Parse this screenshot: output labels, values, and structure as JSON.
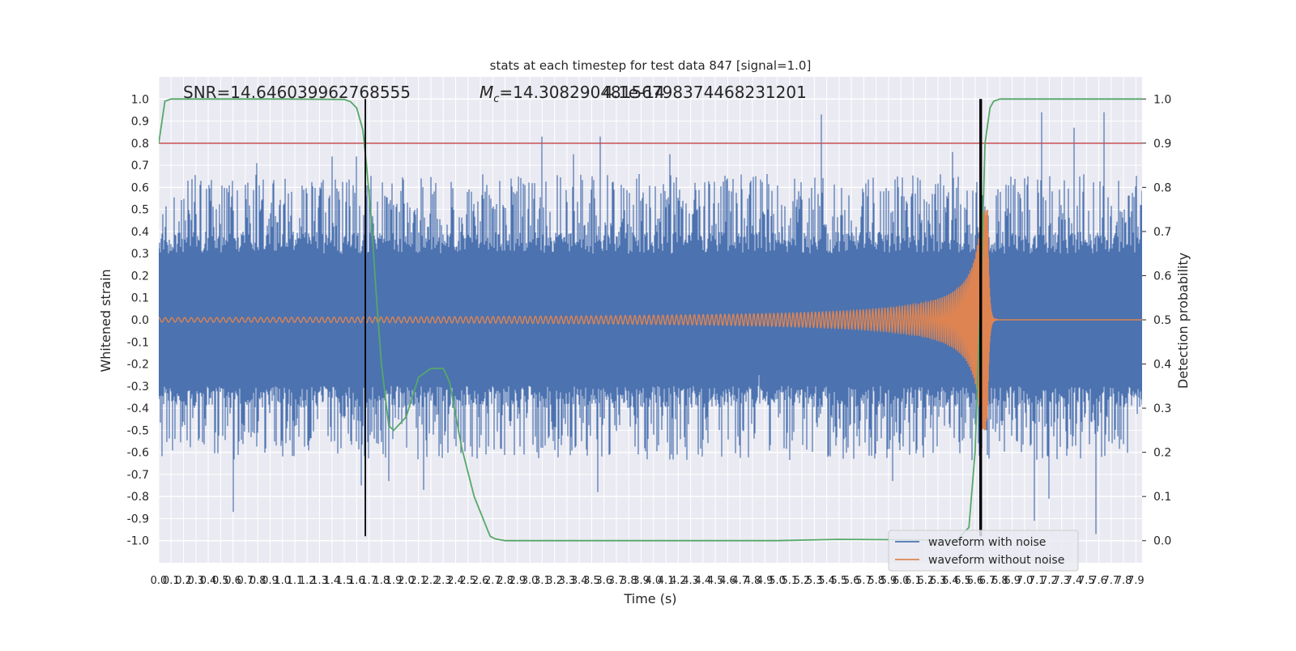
{
  "chart_data": {
    "type": "line",
    "title": "stats at each timestep for test data 847 [signal=1.0]",
    "xlabel": "Time (s)",
    "ylabel": "Whitened strain",
    "y2label": "Detection probability",
    "annotations": {
      "snr": "SNR=14.646039962768555",
      "mc_prefix": "M",
      "mc_sub": "c",
      "mc_value": "=14.30829048156798374468231201",
      "overlap": "4.1e-14"
    },
    "xlim": [
      0.0,
      7.95
    ],
    "ylim": [
      -1.1,
      1.1
    ],
    "y2lim": [
      -0.05,
      1.05
    ],
    "x_ticks": [
      "0.0",
      "0.1",
      "0.2",
      "0.3",
      "0.4",
      "0.5",
      "0.6",
      "0.7",
      "0.8",
      "0.9",
      "1.0",
      "1.1",
      "1.2",
      "1.3",
      "1.4",
      "1.5",
      "1.6",
      "1.7",
      "1.8",
      "1.9",
      "2.0",
      "2.1",
      "2.2",
      "2.3",
      "2.4",
      "2.5",
      "2.6",
      "2.7",
      "2.8",
      "2.9",
      "3.0",
      "3.1",
      "3.2",
      "3.3",
      "3.4",
      "3.5",
      "3.6",
      "3.7",
      "3.8",
      "3.9",
      "4.0",
      "4.1",
      "4.2",
      "4.3",
      "4.4",
      "4.5",
      "4.6",
      "4.7",
      "4.8",
      "4.9",
      "5.0",
      "5.1",
      "5.2",
      "5.3",
      "5.4",
      "5.5",
      "5.6",
      "5.7",
      "5.8",
      "5.9",
      "6.0",
      "6.1",
      "6.2",
      "6.3",
      "6.4",
      "6.5",
      "6.6",
      "6.7",
      "6.8",
      "6.9",
      "7.0",
      "7.1",
      "7.2",
      "7.3",
      "7.4",
      "7.5",
      "7.6",
      "7.7",
      "7.8",
      "7.9"
    ],
    "y_ticks": [
      "1.0",
      "0.9",
      "0.8",
      "0.7",
      "0.6",
      "0.5",
      "0.4",
      "0.3",
      "0.2",
      "0.1",
      "0.0",
      "-0.1",
      "-0.2",
      "-0.3",
      "-0.4",
      "-0.5",
      "-0.6",
      "-0.7",
      "-0.8",
      "-0.9",
      "-1.0"
    ],
    "y2_ticks": [
      "1.0",
      "0.9",
      "0.8",
      "0.7",
      "0.6",
      "0.5",
      "0.4",
      "0.3",
      "0.2",
      "0.1",
      "0.0"
    ],
    "grid": true,
    "legend": {
      "placement": "bottom-right",
      "entries": [
        {
          "label": "waveform with noise",
          "color": "#4c72b0"
        },
        {
          "label": "waveform without noise",
          "color": "#dd8452"
        }
      ]
    },
    "colors": {
      "noise": "#4c72b0",
      "signal": "#dd8452",
      "probability": "#55a868",
      "threshold": "#c44e52",
      "markers": "#000000",
      "axes_bg": "#eaeaf2",
      "grid": "#ffffff"
    },
    "threshold": 0.9,
    "vertical_markers": [
      1.67,
      6.64,
      6.65
    ],
    "noise_envelope": {
      "core": 0.4,
      "extremes": [
        [
          0.25,
          0.48
        ],
        [
          0.6,
          -0.87
        ],
        [
          0.79,
          0.71
        ],
        [
          1.3,
          0.6
        ],
        [
          1.4,
          0.74
        ],
        [
          1.6,
          0.74
        ],
        [
          1.64,
          -0.75
        ],
        [
          1.86,
          0.71
        ],
        [
          1.86,
          -0.73
        ],
        [
          2.14,
          -0.77
        ],
        [
          2.85,
          0.64
        ],
        [
          3.1,
          0.83
        ],
        [
          3.35,
          0.75
        ],
        [
          3.55,
          -0.78
        ],
        [
          3.57,
          0.83
        ],
        [
          4.13,
          0.75
        ],
        [
          4.85,
          -0.25
        ],
        [
          5.36,
          0.93
        ],
        [
          5.93,
          -0.73
        ],
        [
          6.42,
          0.76
        ],
        [
          7.08,
          -0.91
        ],
        [
          7.14,
          0.94
        ],
        [
          7.2,
          -0.81
        ],
        [
          7.4,
          0.87
        ],
        [
          7.58,
          -0.97
        ],
        [
          7.64,
          0.94
        ]
      ]
    },
    "series": [
      {
        "name": "waveform without noise",
        "chirp": {
          "t_merger": 6.7,
          "amp_start": 0.01,
          "amp_peak": 0.5,
          "freq_start": 9,
          "cycles_to_merger": 203
        }
      },
      {
        "name": "detection probability",
        "axis": "right",
        "x": [
          0.0,
          0.05,
          0.1,
          0.2,
          0.5,
          1.0,
          1.5,
          1.55,
          1.6,
          1.65,
          1.68,
          1.72,
          1.76,
          1.8,
          1.86,
          1.9,
          2.0,
          2.1,
          2.2,
          2.3,
          2.35,
          2.45,
          2.55,
          2.65,
          2.68,
          2.72,
          2.8,
          3.0,
          4.0,
          5.0,
          5.5,
          6.0,
          6.45,
          6.55,
          6.6,
          6.65,
          6.68,
          6.72,
          6.75,
          6.8,
          7.0,
          7.95
        ],
        "y": [
          0.9,
          0.995,
          1.0,
          1.0,
          1.0,
          1.0,
          0.999,
          0.994,
          0.98,
          0.93,
          0.85,
          0.72,
          0.55,
          0.4,
          0.26,
          0.25,
          0.28,
          0.37,
          0.39,
          0.39,
          0.36,
          0.21,
          0.1,
          0.03,
          0.01,
          0.004,
          0.0,
          0.0,
          0.0,
          0.0,
          0.003,
          0.002,
          0.0,
          0.03,
          0.2,
          0.6,
          0.9,
          0.98,
          0.995,
          1.0,
          1.0,
          1.0
        ]
      }
    ]
  }
}
